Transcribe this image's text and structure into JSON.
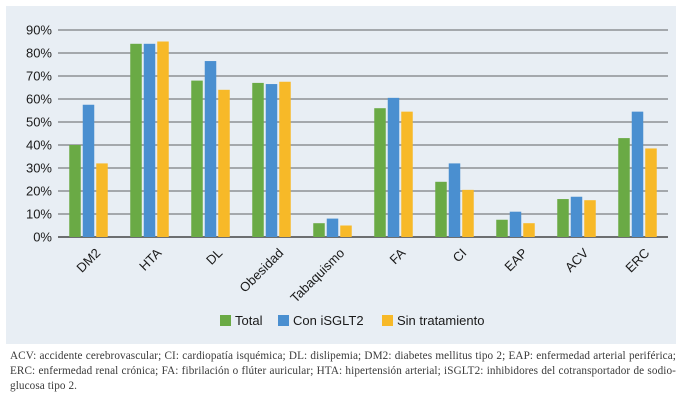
{
  "chart_data": {
    "type": "bar",
    "title": "",
    "xlabel": "",
    "ylabel": "",
    "ylim": [
      0,
      90
    ],
    "yticks": [
      0,
      10,
      20,
      30,
      40,
      50,
      60,
      70,
      80,
      90
    ],
    "ytick_labels": [
      "0%",
      "10%",
      "20%",
      "30%",
      "40%",
      "50%",
      "60%",
      "70%",
      "80%",
      "90%"
    ],
    "grid": true,
    "legend_position": "bottom",
    "categories": [
      "DM2",
      "HTA",
      "DL",
      "Obesidad",
      "Tabaquismo",
      "FA",
      "CI",
      "EAP",
      "ACV",
      "ERC"
    ],
    "series": [
      {
        "name": "Total",
        "color": "#6aaa45",
        "values": [
          40,
          84,
          68,
          67,
          6,
          56,
          24,
          7.5,
          16.5,
          43
        ]
      },
      {
        "name": "Con iSGLT2",
        "color": "#4a8fd0",
        "values": [
          57.5,
          84,
          76.5,
          66.5,
          8,
          60.5,
          32,
          11,
          17.5,
          54.5
        ]
      },
      {
        "name": "Sin tratamiento",
        "color": "#f7b928",
        "values": [
          32,
          85,
          64,
          67.5,
          5,
          54.5,
          20.5,
          6,
          16,
          38.5
        ]
      }
    ]
  },
  "footnote": "ACV: accidente cerebrovascular; CI: cardiopatía isquémica; DL: dislipemia; DM2: diabetes mellitus tipo 2; EAP: enfermedad arterial periférica; ERC: enfermedad renal crónica; FA: fibrilación o flúter auricular; HTA: hipertensión arterial; iSGLT2: inhibidores del cotransportador de sodio-glucosa tipo 2."
}
